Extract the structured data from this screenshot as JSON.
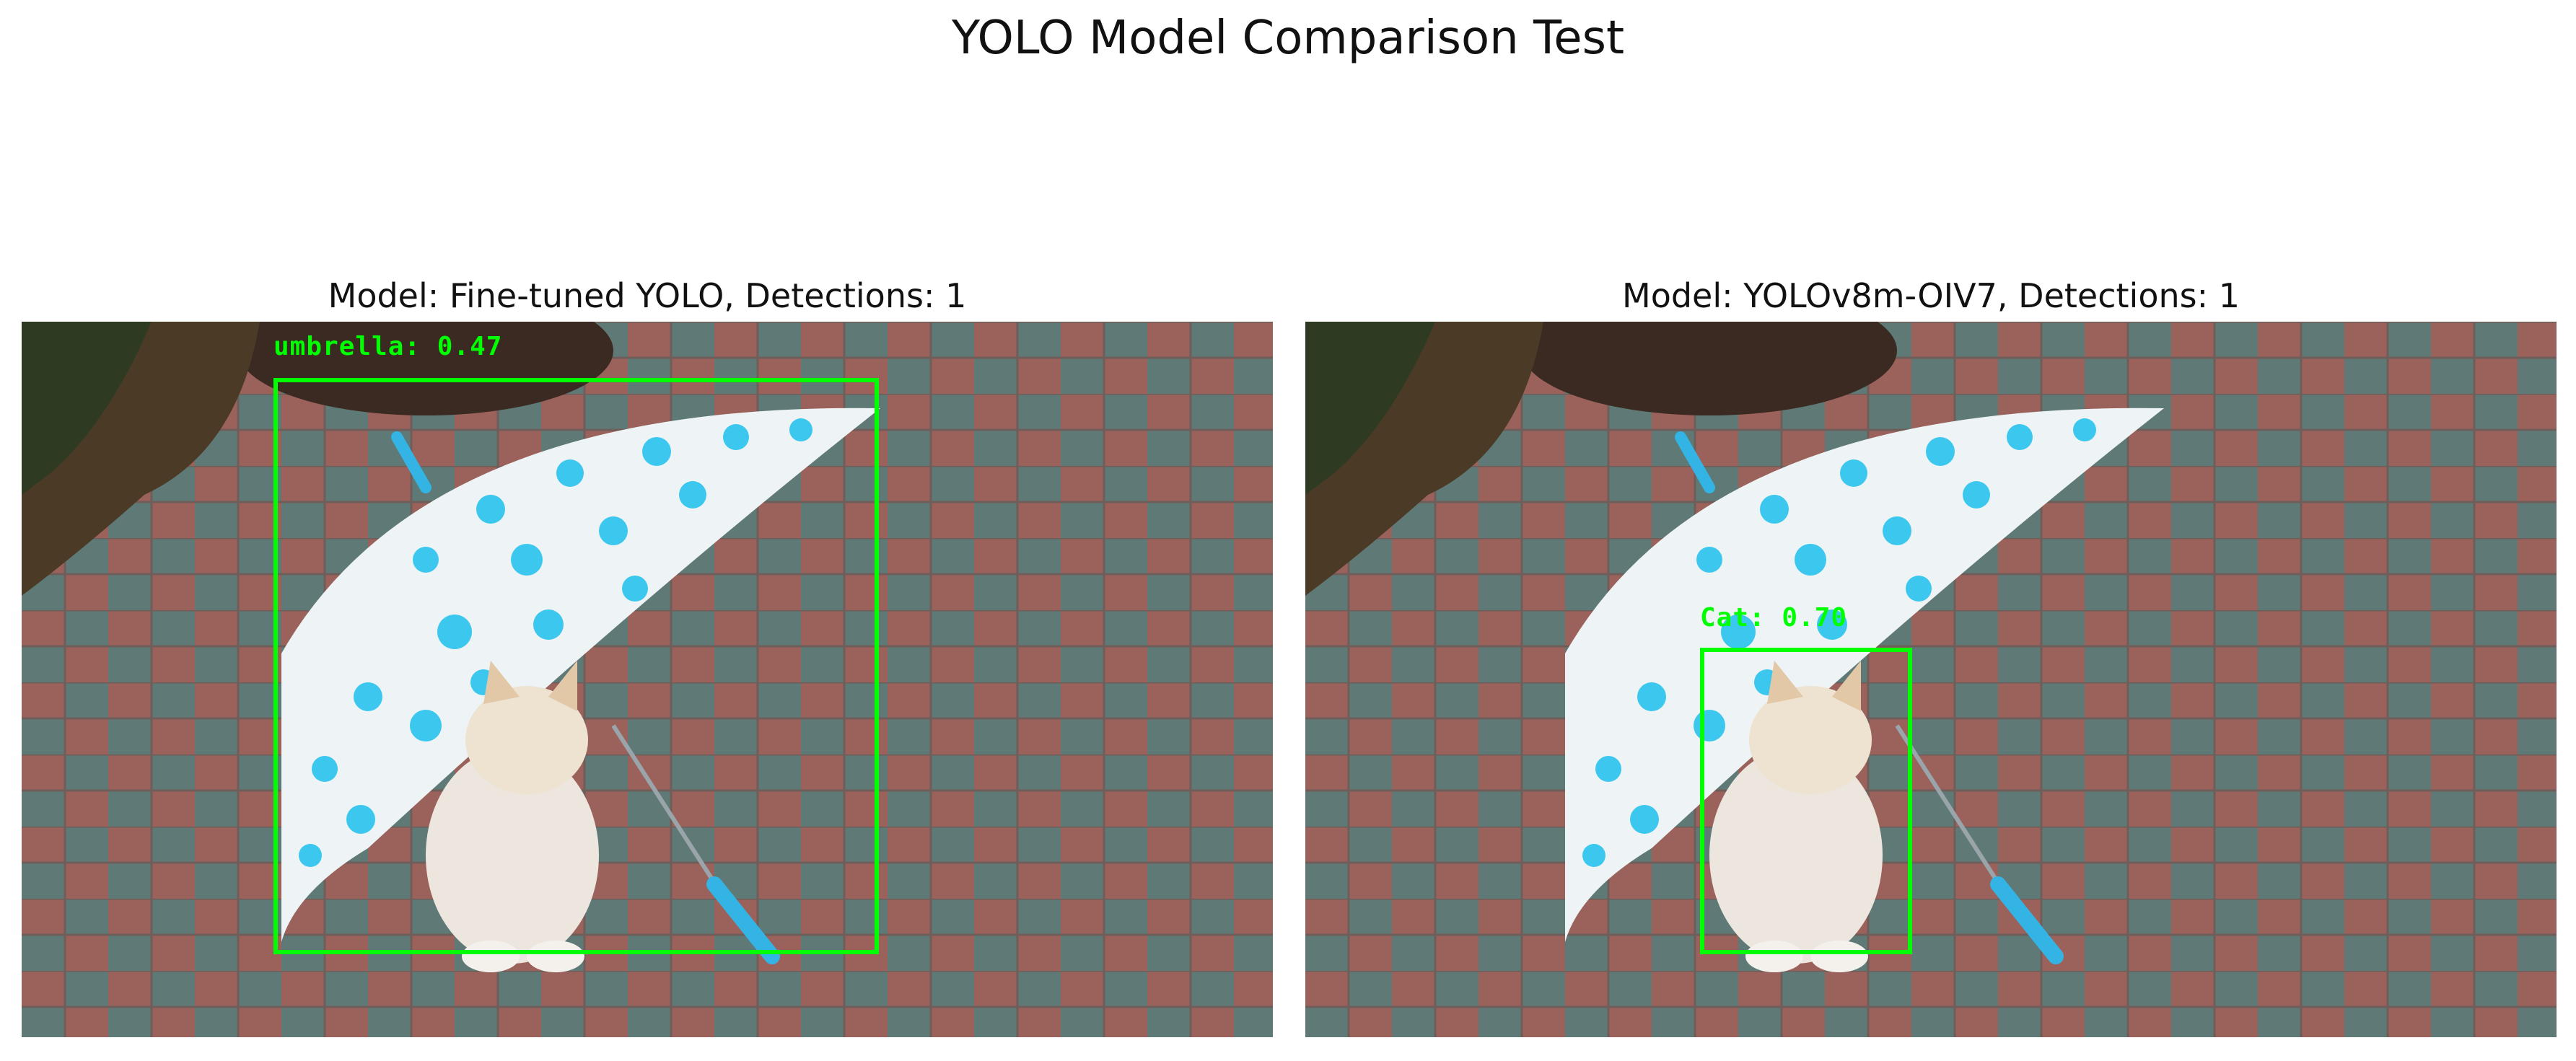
{
  "figure": {
    "title": "YOLO Model Comparison Test"
  },
  "panels": [
    {
      "title": "Model: Fine-tuned YOLO, Detections: 1",
      "detection": {
        "label": "umbrella: 0.47",
        "class": "umbrella",
        "confidence": 0.47
      }
    },
    {
      "title": "Model: YOLOv8m-OIV7, Detections: 1",
      "detection": {
        "label": "Cat: 0.70",
        "class": "Cat",
        "confidence": 0.7
      }
    }
  ],
  "colors": {
    "box": "#00ff00",
    "umbrella_dots": "#3cc8ee",
    "umbrella_handle": "#34b4e4"
  }
}
